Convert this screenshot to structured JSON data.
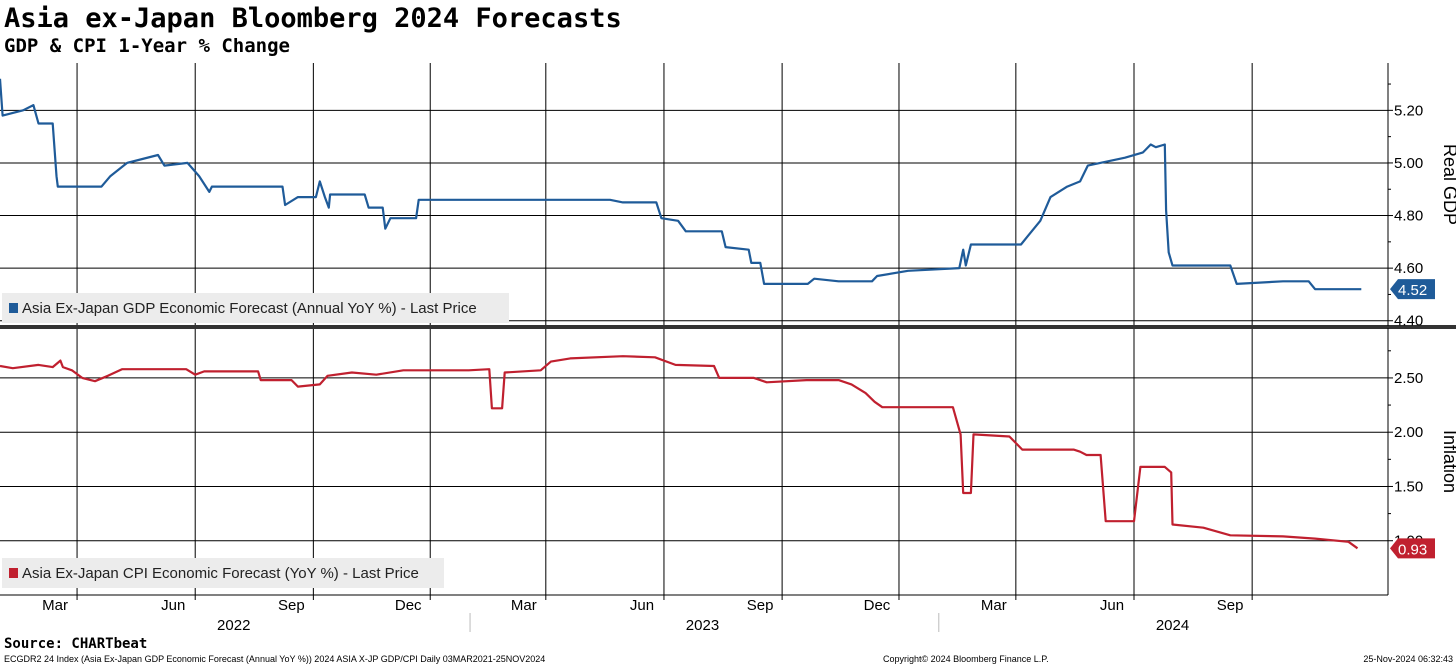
{
  "header": {
    "title": "Asia ex-Japan Bloomberg 2024 Forecasts",
    "subtitle": "GDP & CPI 1-Year % Change"
  },
  "chart_data": [
    {
      "type": "line",
      "panel": "top",
      "axis_title": "Real GDP",
      "ylim": [
        4.38,
        5.38
      ],
      "yticks": [
        "5.20",
        "5.00",
        "4.80",
        "4.60",
        "4.40"
      ],
      "grid": true,
      "color": "#1f5b99",
      "legend": "Asia Ex-Japan GDP Economic Forecast (Annual YoY %) - Last Price",
      "last_value": "4.52",
      "series": [
        {
          "name": "Asia Ex-Japan GDP Economic Forecast (Annual YoY %) - Last Price",
          "points": [
            [
              "2021-12-31",
              5.32
            ],
            [
              "2022-01-02",
              5.18
            ],
            [
              "2022-01-18",
              5.2
            ],
            [
              "2022-01-26",
              5.22
            ],
            [
              "2022-01-30",
              5.15
            ],
            [
              "2022-02-10",
              5.15
            ],
            [
              "2022-02-13",
              4.95
            ],
            [
              "2022-02-14",
              4.91
            ],
            [
              "2022-03-20",
              4.91
            ],
            [
              "2022-03-27",
              4.95
            ],
            [
              "2022-04-09",
              5.0
            ],
            [
              "2022-05-03",
              5.03
            ],
            [
              "2022-05-08",
              4.99
            ],
            [
              "2022-05-26",
              5.0
            ],
            [
              "2022-06-04",
              4.95
            ],
            [
              "2022-06-12",
              4.89
            ],
            [
              "2022-06-14",
              4.91
            ],
            [
              "2022-08-08",
              4.91
            ],
            [
              "2022-08-10",
              4.84
            ],
            [
              "2022-08-20",
              4.87
            ],
            [
              "2022-09-03",
              4.87
            ],
            [
              "2022-09-06",
              4.93
            ],
            [
              "2022-09-10",
              4.87
            ],
            [
              "2022-09-13",
              4.83
            ],
            [
              "2022-09-14",
              4.88
            ],
            [
              "2022-10-11",
              4.88
            ],
            [
              "2022-10-14",
              4.83
            ],
            [
              "2022-10-25",
              4.83
            ],
            [
              "2022-10-27",
              4.75
            ],
            [
              "2022-10-31",
              4.79
            ],
            [
              "2022-11-20",
              4.79
            ],
            [
              "2022-11-22",
              4.86
            ],
            [
              "2023-04-20",
              4.86
            ],
            [
              "2023-04-30",
              4.85
            ],
            [
              "2023-05-26",
              4.85
            ],
            [
              "2023-05-30",
              4.79
            ],
            [
              "2023-06-12",
              4.78
            ],
            [
              "2023-06-18",
              4.74
            ],
            [
              "2023-07-16",
              4.74
            ],
            [
              "2023-07-19",
              4.68
            ],
            [
              "2023-08-06",
              4.67
            ],
            [
              "2023-08-08",
              4.62
            ],
            [
              "2023-08-15",
              4.62
            ],
            [
              "2023-08-18",
              4.54
            ],
            [
              "2023-09-21",
              4.54
            ],
            [
              "2023-09-26",
              4.56
            ],
            [
              "2023-10-15",
              4.55
            ],
            [
              "2023-11-10",
              4.55
            ],
            [
              "2023-11-14",
              4.57
            ],
            [
              "2023-12-08",
              4.59
            ],
            [
              "2024-01-17",
              4.6
            ],
            [
              "2024-01-20",
              4.67
            ],
            [
              "2024-01-22",
              4.61
            ],
            [
              "2024-01-26",
              4.69
            ],
            [
              "2024-03-05",
              4.69
            ],
            [
              "2024-03-10",
              4.72
            ],
            [
              "2024-03-20",
              4.78
            ],
            [
              "2024-03-28",
              4.87
            ],
            [
              "2024-04-10",
              4.91
            ],
            [
              "2024-04-20",
              4.93
            ],
            [
              "2024-04-26",
              4.99
            ],
            [
              "2024-05-25",
              5.02
            ],
            [
              "2024-06-08",
              5.04
            ],
            [
              "2024-06-14",
              5.07
            ],
            [
              "2024-06-18",
              5.06
            ],
            [
              "2024-06-25",
              5.07
            ],
            [
              "2024-06-26",
              4.82
            ],
            [
              "2024-06-28",
              4.66
            ],
            [
              "2024-07-01",
              4.61
            ],
            [
              "2024-08-15",
              4.61
            ],
            [
              "2024-08-20",
              4.54
            ],
            [
              "2024-09-25",
              4.55
            ],
            [
              "2024-10-15",
              4.55
            ],
            [
              "2024-10-20",
              4.52
            ],
            [
              "2024-11-25",
              4.52
            ]
          ]
        }
      ]
    },
    {
      "type": "line",
      "panel": "bottom",
      "axis_title": "Inflation",
      "ylim": [
        0.5,
        2.96
      ],
      "yticks": [
        "2.50",
        "2.00",
        "1.50",
        "1.00"
      ],
      "grid": true,
      "color": "#c0202f",
      "legend": "Asia Ex-Japan CPI Economic Forecast (YoY %) - Last Price",
      "last_value": "0.93",
      "series": [
        {
          "name": "Asia Ex-Japan CPI Economic Forecast (YoY %) - Last Price",
          "points": [
            [
              "2021-12-31",
              2.61
            ],
            [
              "2022-01-10",
              2.59
            ],
            [
              "2022-01-30",
              2.62
            ],
            [
              "2022-02-10",
              2.6
            ],
            [
              "2022-02-16",
              2.66
            ],
            [
              "2022-02-18",
              2.6
            ],
            [
              "2022-02-25",
              2.57
            ],
            [
              "2022-03-05",
              2.5
            ],
            [
              "2022-03-15",
              2.47
            ],
            [
              "2022-03-25",
              2.52
            ],
            [
              "2022-04-05",
              2.58
            ],
            [
              "2022-05-25",
              2.58
            ],
            [
              "2022-06-01",
              2.53
            ],
            [
              "2022-06-08",
              2.56
            ],
            [
              "2022-07-20",
              2.56
            ],
            [
              "2022-07-22",
              2.48
            ],
            [
              "2022-08-15",
              2.48
            ],
            [
              "2022-08-20",
              2.42
            ],
            [
              "2022-09-06",
              2.44
            ],
            [
              "2022-09-12",
              2.52
            ],
            [
              "2022-10-01",
              2.55
            ],
            [
              "2022-10-20",
              2.53
            ],
            [
              "2022-11-10",
              2.57
            ],
            [
              "2022-12-31",
              2.57
            ],
            [
              "2023-01-16",
              2.58
            ],
            [
              "2023-01-18",
              2.22
            ],
            [
              "2023-01-26",
              2.22
            ],
            [
              "2023-01-28",
              2.55
            ],
            [
              "2023-02-25",
              2.57
            ],
            [
              "2023-03-05",
              2.65
            ],
            [
              "2023-03-20",
              2.68
            ],
            [
              "2023-04-30",
              2.7
            ],
            [
              "2023-05-25",
              2.69
            ],
            [
              "2023-06-10",
              2.62
            ],
            [
              "2023-07-10",
              2.61
            ],
            [
              "2023-07-14",
              2.5
            ],
            [
              "2023-08-10",
              2.5
            ],
            [
              "2023-08-20",
              2.46
            ],
            [
              "2023-09-20",
              2.48
            ],
            [
              "2023-10-15",
              2.48
            ],
            [
              "2023-10-25",
              2.44
            ],
            [
              "2023-11-05",
              2.36
            ],
            [
              "2023-11-12",
              2.28
            ],
            [
              "2023-11-18",
              2.23
            ],
            [
              "2024-01-12",
              2.23
            ],
            [
              "2024-01-18",
              1.98
            ],
            [
              "2024-01-20",
              1.44
            ],
            [
              "2024-01-26",
              1.44
            ],
            [
              "2024-01-28",
              1.98
            ],
            [
              "2024-02-25",
              1.96
            ],
            [
              "2024-03-06",
              1.84
            ],
            [
              "2024-04-15",
              1.84
            ],
            [
              "2024-04-20",
              1.82
            ],
            [
              "2024-04-25",
              1.79
            ],
            [
              "2024-05-06",
              1.79
            ],
            [
              "2024-05-10",
              1.18
            ],
            [
              "2024-06-01",
              1.18
            ],
            [
              "2024-06-06",
              1.68
            ],
            [
              "2024-06-25",
              1.68
            ],
            [
              "2024-06-30",
              1.63
            ],
            [
              "2024-07-01",
              1.15
            ],
            [
              "2024-07-25",
              1.12
            ],
            [
              "2024-08-15",
              1.05
            ],
            [
              "2024-09-25",
              1.04
            ],
            [
              "2024-10-20",
              1.02
            ],
            [
              "2024-11-15",
              0.99
            ],
            [
              "2024-11-22",
              0.93
            ]
          ]
        }
      ]
    }
  ],
  "x_axis": {
    "range": [
      "2021-12-31",
      "2024-12-15"
    ],
    "month_ticks": [
      {
        "label": "Mar",
        "date": "2022-03-01"
      },
      {
        "label": "Jun",
        "date": "2022-06-01"
      },
      {
        "label": "Sep",
        "date": "2022-09-01"
      },
      {
        "label": "Dec",
        "date": "2022-12-01"
      },
      {
        "label": "Mar",
        "date": "2023-03-01"
      },
      {
        "label": "Jun",
        "date": "2023-06-01"
      },
      {
        "label": "Sep",
        "date": "2023-09-01"
      },
      {
        "label": "Dec",
        "date": "2023-12-01"
      },
      {
        "label": "Mar",
        "date": "2024-03-01"
      },
      {
        "label": "Jun",
        "date": "2024-06-01"
      },
      {
        "label": "Sep",
        "date": "2024-09-01"
      }
    ],
    "year_labels": [
      {
        "label": "2022",
        "date": "2022-07-01"
      },
      {
        "label": "2023",
        "date": "2023-07-01"
      },
      {
        "label": "2024",
        "date": "2024-07-01"
      }
    ],
    "year_dividers": [
      "2023-01-01",
      "2024-01-01"
    ]
  },
  "footer": {
    "source": "Source: CHARTbeat",
    "ticker": "ECGDR2 24 Index (Asia Ex-Japan GDP Economic Forecast (Annual YoY %)) 2024 ASIA X-JP GDP/CPI  Daily 03MAR2021-25NOV2024",
    "copyright": "Copyright© 2024 Bloomberg Finance L.P.",
    "timestamp": "25-Nov-2024 06:32:43"
  }
}
